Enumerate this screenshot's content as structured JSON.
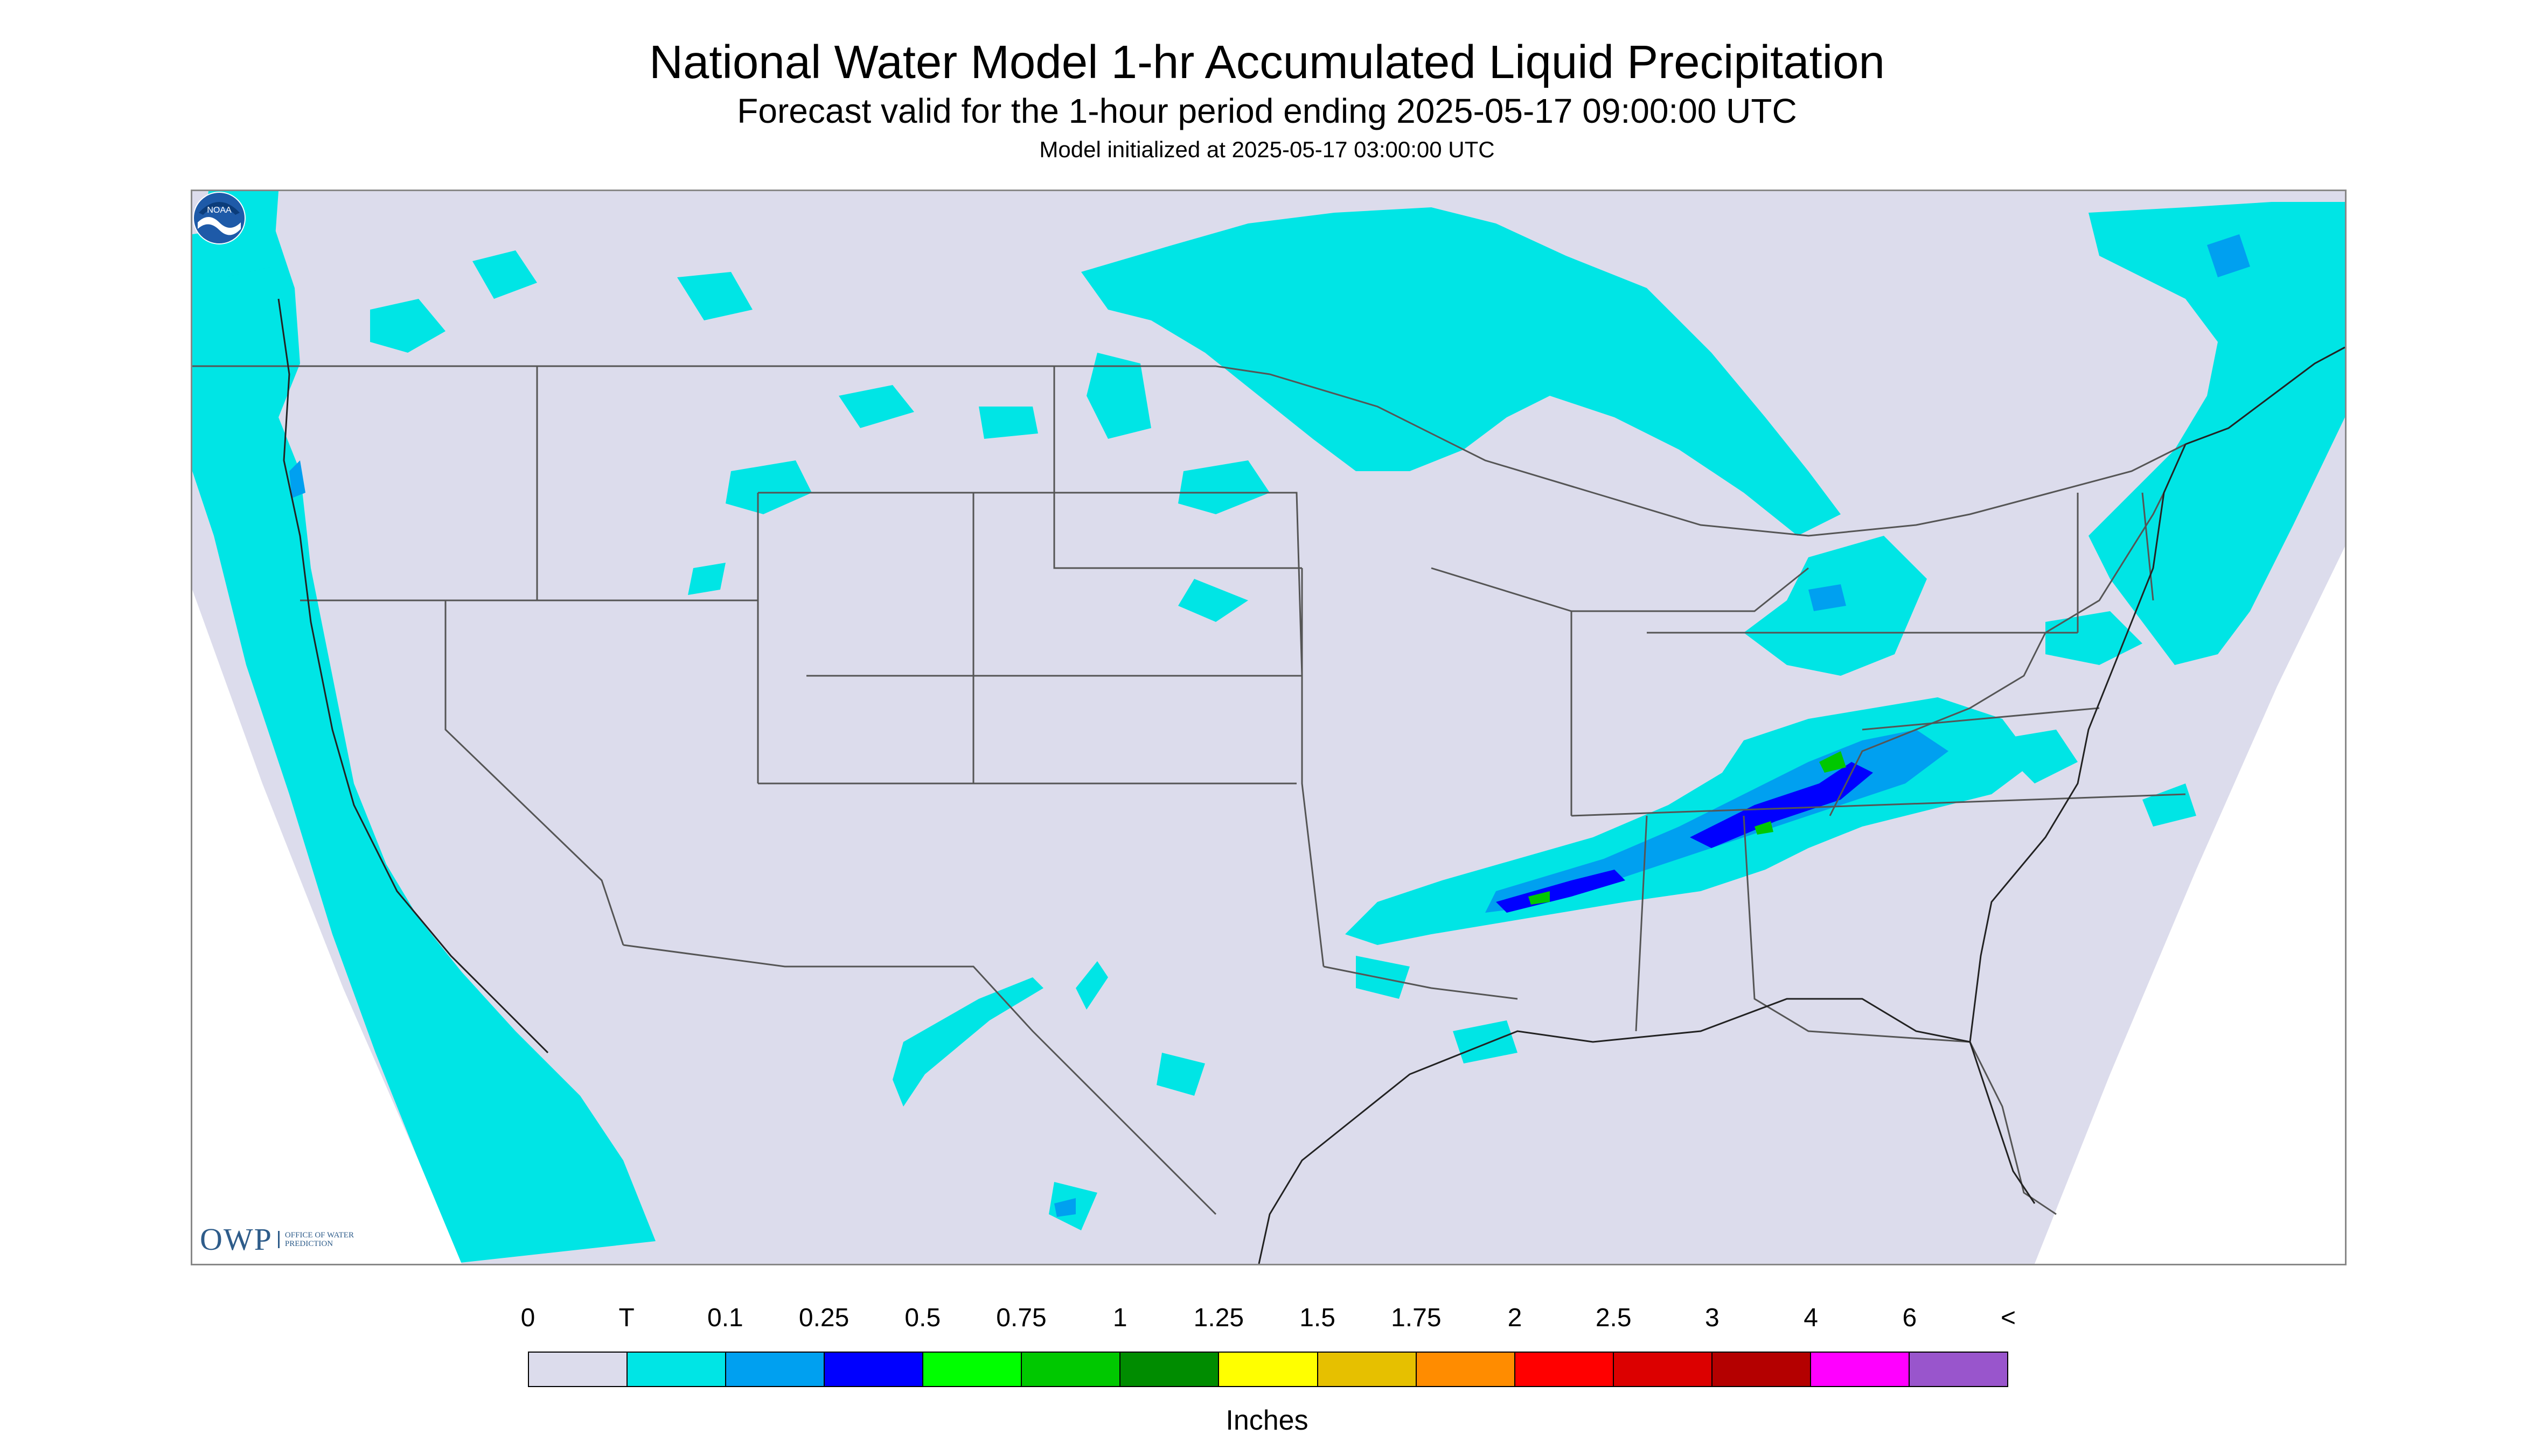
{
  "title": "National Water Model 1-hr Accumulated Liquid Precipitation",
  "subtitle": "Forecast valid for the 1-hour period ending 2025-05-17 09:00:00 UTC",
  "init_text": "Model initialized at 2025-05-17 03:00:00 UTC",
  "logos": {
    "owp_main": "OWP",
    "owp_sub": "OFFICE OF WATER PREDICTION",
    "noaa": "NOAA"
  },
  "legend": {
    "labels": [
      "0",
      "T",
      "0.1",
      "0.25",
      "0.5",
      "0.75",
      "1",
      "1.25",
      "1.5",
      "1.75",
      "2",
      "2.5",
      "3",
      "4",
      "6",
      "<"
    ],
    "colors": [
      "#dcdcec",
      "#00e5e5",
      "#00a0f0",
      "#0000ff",
      "#00ff00",
      "#00c800",
      "#008c00",
      "#ffff00",
      "#e6c000",
      "#ff8c00",
      "#ff0000",
      "#dc0000",
      "#b40000",
      "#ff00ff",
      "#9955cc"
    ],
    "units": "Inches"
  },
  "colors": {
    "background": "#dcdcec",
    "trace": "#00e5e5",
    "light": "#00a0f0",
    "moderate": "#0000ff",
    "heavy": "#00c800",
    "outside_domain": "#ffffff",
    "borders": "#555555"
  }
}
